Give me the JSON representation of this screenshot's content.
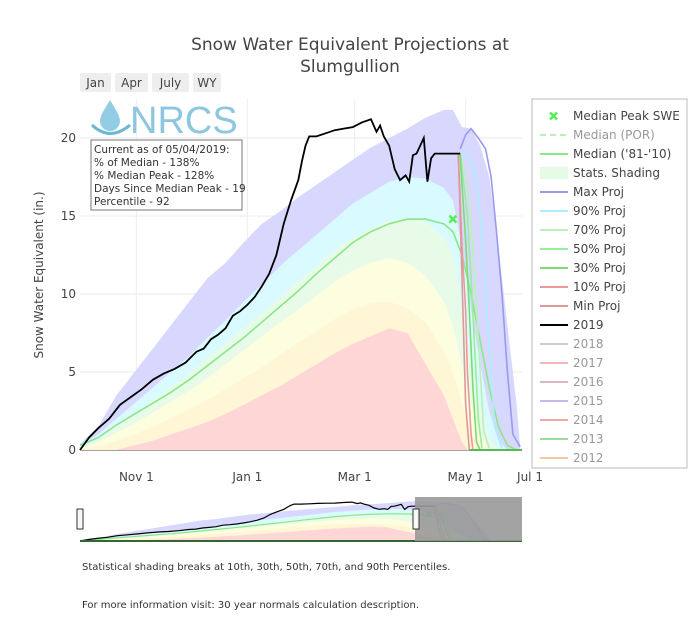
{
  "chart_data": {
    "type": "area",
    "title_line1": "Snow Water Equivalent Projections at",
    "title_line2": "Slumgullion",
    "ylabel": "Snow Water Equivalent (in.)",
    "ylim": [
      0,
      22.5
    ],
    "y_ticks": [
      "0",
      "5",
      "10",
      "15",
      "20"
    ],
    "x_ticks": [
      "Nov  1",
      "Jan  1",
      "Mar  1",
      "May  1",
      "Jul  1"
    ],
    "range_buttons": [
      "Jan",
      "Apr",
      "July",
      "WY"
    ],
    "logo_text": "NRCS",
    "annotation": [
      "Current as of 05/04/2019:",
      "% of Median - 138%",
      "% Median Peak - 128%",
      "Days Since Median Peak - 19",
      "Percentile - 92"
    ],
    "legend": [
      {
        "label": "Median Peak SWE",
        "color": "#55ee55",
        "kind": "marker"
      },
      {
        "label": "Median (POR)",
        "color": "#b8f0b8",
        "kind": "dash",
        "dim": true
      },
      {
        "label": "Median ('81-'10)",
        "color": "#88e888",
        "kind": "line"
      },
      {
        "label": "Stats. Shading",
        "color": "#e6fbe6",
        "kind": "box"
      },
      {
        "label": "Max Proj",
        "color": "#9999ee",
        "kind": "line"
      },
      {
        "label": "90% Proj",
        "color": "#aaeeff",
        "kind": "line"
      },
      {
        "label": "70% Proj",
        "color": "#bbf0bb",
        "kind": "line"
      },
      {
        "label": "50% Proj",
        "color": "#99ee99",
        "kind": "line"
      },
      {
        "label": "30% Proj",
        "color": "#77dd77",
        "kind": "line"
      },
      {
        "label": "10% Proj",
        "color": "#ee9999",
        "kind": "line"
      },
      {
        "label": "Min Proj",
        "color": "#dd9999",
        "kind": "line"
      },
      {
        "label": "2019",
        "color": "#000000",
        "kind": "line"
      },
      {
        "label": "2018",
        "color": "#cccccc",
        "kind": "line",
        "dim": true
      },
      {
        "label": "2017",
        "color": "#f0b8b8",
        "kind": "line",
        "dim": true
      },
      {
        "label": "2016",
        "color": "#d8b8b8",
        "kind": "line",
        "dim": true
      },
      {
        "label": "2015",
        "color": "#c8b8f0",
        "kind": "line",
        "dim": true
      },
      {
        "label": "2014",
        "color": "#f0a8a8",
        "kind": "line",
        "dim": true
      },
      {
        "label": "2013",
        "color": "#99dd99",
        "kind": "line",
        "dim": true
      },
      {
        "label": "2012",
        "color": "#f5c8a0",
        "kind": "line",
        "dim": true
      }
    ],
    "colors": {
      "max_band": "#d8d8ff",
      "p90_band": "#d9fbff",
      "p70_band": "#e8fbe8",
      "p50_band": "#fdfde0",
      "p30_band": "#fff6d6",
      "p10_band": "#ffd6d6",
      "median": "#88e888",
      "swe2019": "#000000",
      "peak_marker": "#55ee55"
    },
    "median_peak": {
      "x": 205,
      "y": 14.8
    },
    "series": [
      {
        "name": "Max Proj",
        "color": "#9999ee",
        "points": [
          [
            209,
            19.3
          ],
          [
            212,
            20.2
          ],
          [
            215,
            20.6
          ],
          [
            219,
            20.0
          ],
          [
            223,
            19.3
          ],
          [
            226,
            17.5
          ],
          [
            229,
            14.0
          ],
          [
            232,
            10.0
          ],
          [
            235,
            5.0
          ],
          [
            238,
            1.0
          ],
          [
            242,
            0.2
          ]
        ]
      },
      {
        "name": "90% Proj",
        "color": "#aaeeff",
        "points": [
          [
            209,
            19.0
          ],
          [
            212,
            19.0
          ],
          [
            215,
            18.5
          ],
          [
            218,
            17.3
          ],
          [
            220,
            15.0
          ],
          [
            223,
            10.0
          ],
          [
            226,
            5.0
          ],
          [
            228,
            1.5
          ],
          [
            232,
            0.1
          ]
        ]
      },
      {
        "name": "70% Proj",
        "color": "#bbf0bb",
        "points": [
          [
            209,
            19.0
          ],
          [
            212,
            17.5
          ],
          [
            214,
            16.0
          ],
          [
            216,
            13.0
          ],
          [
            218,
            9.0
          ],
          [
            220,
            5.0
          ],
          [
            222,
            1.2
          ],
          [
            225,
            0.1
          ]
        ]
      },
      {
        "name": "50% Proj",
        "color": "#99ee99",
        "points": [
          [
            209,
            19.0
          ],
          [
            211,
            17.0
          ],
          [
            213,
            15.0
          ],
          [
            215,
            11.0
          ],
          [
            217,
            6.5
          ],
          [
            219,
            2.0
          ],
          [
            221,
            0.1
          ]
        ]
      },
      {
        "name": "30% Proj",
        "color": "#77dd77",
        "points": [
          [
            209,
            19.0
          ],
          [
            210,
            17.0
          ],
          [
            212,
            13.5
          ],
          [
            214,
            9.0
          ],
          [
            216,
            4.0
          ],
          [
            218,
            0.5
          ],
          [
            220,
            0.0
          ]
        ]
      },
      {
        "name": "10% Proj",
        "color": "#ee9999",
        "points": [
          [
            208,
            19.0
          ],
          [
            209,
            16.0
          ],
          [
            210,
            13.0
          ],
          [
            212,
            9.0
          ],
          [
            213,
            5.0
          ],
          [
            215,
            1.0
          ],
          [
            216,
            0.0
          ]
        ]
      },
      {
        "name": "Min Proj",
        "color": "#dd9999",
        "points": [
          [
            208,
            19.0
          ],
          [
            209,
            15.0
          ],
          [
            210,
            11.0
          ],
          [
            211,
            7.0
          ],
          [
            212,
            3.0
          ],
          [
            214,
            0.0
          ]
        ]
      },
      {
        "name": "2019",
        "color": "#000000",
        "points": [
          [
            0,
            0
          ],
          [
            5,
            0.8
          ],
          [
            10,
            1.4
          ],
          [
            16,
            2.0
          ],
          [
            22,
            2.9
          ],
          [
            28,
            3.4
          ],
          [
            34,
            3.9
          ],
          [
            40,
            4.5
          ],
          [
            46,
            4.9
          ],
          [
            52,
            5.2
          ],
          [
            58,
            5.6
          ],
          [
            64,
            6.3
          ],
          [
            68,
            6.5
          ],
          [
            72,
            7.1
          ],
          [
            76,
            7.4
          ],
          [
            80,
            7.8
          ],
          [
            84,
            8.6
          ],
          [
            88,
            8.9
          ],
          [
            92,
            9.3
          ],
          [
            96,
            9.8
          ],
          [
            100,
            10.5
          ],
          [
            104,
            11.3
          ],
          [
            108,
            12.5
          ],
          [
            112,
            14.5
          ],
          [
            116,
            16.0
          ],
          [
            120,
            17.3
          ],
          [
            122,
            18.5
          ],
          [
            124,
            19.5
          ],
          [
            126,
            20.1
          ],
          [
            130,
            20.1
          ],
          [
            135,
            20.3
          ],
          [
            140,
            20.5
          ],
          [
            145,
            20.6
          ],
          [
            150,
            20.7
          ],
          [
            155,
            21.0
          ],
          [
            160,
            21.2
          ],
          [
            163,
            20.4
          ],
          [
            165,
            20.8
          ],
          [
            167,
            20.1
          ],
          [
            170,
            19.5
          ],
          [
            173,
            18.0
          ],
          [
            176,
            17.3
          ],
          [
            179,
            17.6
          ],
          [
            181,
            17.2
          ],
          [
            183,
            18.9
          ],
          [
            185,
            19.0
          ],
          [
            189,
            20.0
          ],
          [
            191,
            17.2
          ],
          [
            193,
            18.7
          ],
          [
            195,
            19.0
          ],
          [
            209,
            19.0
          ]
        ]
      }
    ],
    "median_line": [
      [
        0,
        0.3
      ],
      [
        10,
        0.8
      ],
      [
        20,
        1.6
      ],
      [
        30,
        2.3
      ],
      [
        40,
        3.0
      ],
      [
        50,
        3.7
      ],
      [
        60,
        4.5
      ],
      [
        70,
        5.4
      ],
      [
        80,
        6.3
      ],
      [
        90,
        7.2
      ],
      [
        100,
        8.2
      ],
      [
        110,
        9.2
      ],
      [
        120,
        10.2
      ],
      [
        130,
        11.3
      ],
      [
        140,
        12.3
      ],
      [
        150,
        13.3
      ],
      [
        160,
        14.0
      ],
      [
        170,
        14.5
      ],
      [
        180,
        14.8
      ],
      [
        190,
        14.8
      ],
      [
        200,
        14.5
      ],
      [
        205,
        14.0
      ],
      [
        210,
        12.5
      ],
      [
        215,
        10.0
      ],
      [
        220,
        7.0
      ],
      [
        225,
        4.0
      ],
      [
        230,
        1.5
      ],
      [
        235,
        0.3
      ],
      [
        240,
        0.0
      ]
    ],
    "bands": {
      "max": [
        [
          0,
          0.4
        ],
        [
          10,
          1.5
        ],
        [
          20,
          3.5
        ],
        [
          30,
          5.0
        ],
        [
          40,
          6.5
        ],
        [
          50,
          8.0
        ],
        [
          60,
          9.5
        ],
        [
          70,
          11.0
        ],
        [
          80,
          12.0
        ],
        [
          90,
          13.3
        ],
        [
          100,
          14.5
        ],
        [
          110,
          15.3
        ],
        [
          120,
          16.2
        ],
        [
          130,
          17.0
        ],
        [
          140,
          17.8
        ],
        [
          150,
          18.6
        ],
        [
          160,
          19.4
        ],
        [
          170,
          20.0
        ],
        [
          180,
          20.6
        ],
        [
          190,
          21.3
        ],
        [
          200,
          21.8
        ],
        [
          205,
          21.8
        ],
        [
          210,
          20.7
        ],
        [
          215,
          20.6
        ],
        [
          220,
          19.5
        ],
        [
          225,
          17.5
        ],
        [
          230,
          13.0
        ],
        [
          235,
          8.0
        ],
        [
          240,
          3.0
        ],
        [
          242,
          0.2
        ]
      ],
      "p90": [
        [
          0,
          0.3
        ],
        [
          10,
          1.0
        ],
        [
          20,
          2.0
        ],
        [
          30,
          3.0
        ],
        [
          40,
          4.0
        ],
        [
          50,
          5.0
        ],
        [
          60,
          6.0
        ],
        [
          70,
          7.2
        ],
        [
          80,
          8.3
        ],
        [
          90,
          9.5
        ],
        [
          100,
          10.6
        ],
        [
          110,
          11.8
        ],
        [
          120,
          12.8
        ],
        [
          130,
          13.8
        ],
        [
          140,
          14.8
        ],
        [
          150,
          15.8
        ],
        [
          160,
          16.5
        ],
        [
          170,
          17.2
        ],
        [
          180,
          17.5
        ],
        [
          190,
          17.4
        ],
        [
          200,
          16.8
        ],
        [
          205,
          16.0
        ],
        [
          210,
          13.0
        ],
        [
          215,
          9.0
        ],
        [
          220,
          5.5
        ],
        [
          225,
          2.5
        ],
        [
          230,
          0.6
        ],
        [
          235,
          0.0
        ]
      ],
      "p70": [
        [
          0,
          0.2
        ],
        [
          10,
          0.7
        ],
        [
          20,
          1.5
        ],
        [
          30,
          2.3
        ],
        [
          40,
          3.2
        ],
        [
          50,
          4.0
        ],
        [
          60,
          4.9
        ],
        [
          70,
          5.9
        ],
        [
          80,
          6.8
        ],
        [
          90,
          7.8
        ],
        [
          100,
          8.8
        ],
        [
          110,
          9.8
        ],
        [
          120,
          10.8
        ],
        [
          130,
          11.8
        ],
        [
          140,
          12.8
        ],
        [
          150,
          13.6
        ],
        [
          160,
          14.2
        ],
        [
          170,
          14.7
        ],
        [
          180,
          14.9
        ],
        [
          190,
          14.6
        ],
        [
          200,
          13.6
        ],
        [
          205,
          12.5
        ],
        [
          210,
          9.5
        ],
        [
          215,
          6.0
        ],
        [
          220,
          3.0
        ],
        [
          225,
          0.8
        ],
        [
          230,
          0.0
        ]
      ],
      "p50": [
        [
          0,
          0.1
        ],
        [
          10,
          0.5
        ],
        [
          20,
          1.1
        ],
        [
          30,
          1.7
        ],
        [
          40,
          2.4
        ],
        [
          50,
          3.1
        ],
        [
          60,
          3.8
        ],
        [
          70,
          4.6
        ],
        [
          80,
          5.5
        ],
        [
          90,
          6.4
        ],
        [
          100,
          7.3
        ],
        [
          110,
          8.2
        ],
        [
          120,
          9.0
        ],
        [
          130,
          9.9
        ],
        [
          140,
          10.8
        ],
        [
          150,
          11.5
        ],
        [
          160,
          12.0
        ],
        [
          170,
          12.3
        ],
        [
          180,
          12.0
        ],
        [
          190,
          11.2
        ],
        [
          200,
          9.5
        ],
        [
          205,
          8.0
        ],
        [
          210,
          5.5
        ],
        [
          215,
          3.0
        ],
        [
          220,
          1.0
        ],
        [
          225,
          0.0
        ]
      ],
      "p30": [
        [
          0,
          0.05
        ],
        [
          10,
          0.2
        ],
        [
          20,
          0.6
        ],
        [
          30,
          1.0
        ],
        [
          40,
          1.5
        ],
        [
          50,
          2.0
        ],
        [
          60,
          2.6
        ],
        [
          70,
          3.2
        ],
        [
          80,
          3.9
        ],
        [
          90,
          4.6
        ],
        [
          100,
          5.3
        ],
        [
          110,
          6.1
        ],
        [
          120,
          6.9
        ],
        [
          130,
          7.6
        ],
        [
          140,
          8.4
        ],
        [
          150,
          9.0
        ],
        [
          160,
          9.4
        ],
        [
          170,
          9.5
        ],
        [
          180,
          9.1
        ],
        [
          190,
          8.2
        ],
        [
          200,
          6.3
        ],
        [
          205,
          5.0
        ],
        [
          210,
          3.0
        ],
        [
          215,
          1.2
        ],
        [
          220,
          0.0
        ]
      ],
      "p10": [
        [
          0,
          0.0
        ],
        [
          20,
          0.0
        ],
        [
          30,
          0.3
        ],
        [
          40,
          0.6
        ],
        [
          50,
          1.0
        ],
        [
          60,
          1.4
        ],
        [
          70,
          1.8
        ],
        [
          80,
          2.3
        ],
        [
          90,
          2.9
        ],
        [
          100,
          3.5
        ],
        [
          110,
          4.1
        ],
        [
          120,
          4.8
        ],
        [
          130,
          5.5
        ],
        [
          140,
          6.2
        ],
        [
          150,
          6.8
        ],
        [
          160,
          7.3
        ],
        [
          170,
          7.8
        ],
        [
          180,
          7.5
        ],
        [
          190,
          5.5
        ],
        [
          200,
          3.5
        ],
        [
          205,
          2.0
        ],
        [
          210,
          0.5
        ],
        [
          213,
          0.0
        ]
      ]
    }
  },
  "footer": {
    "line1": "Statistical shading breaks at 10th, 30th, 50th, 70th, and 90th Percentiles.",
    "line2": "For more information visit: 30 year normals calculation description."
  }
}
